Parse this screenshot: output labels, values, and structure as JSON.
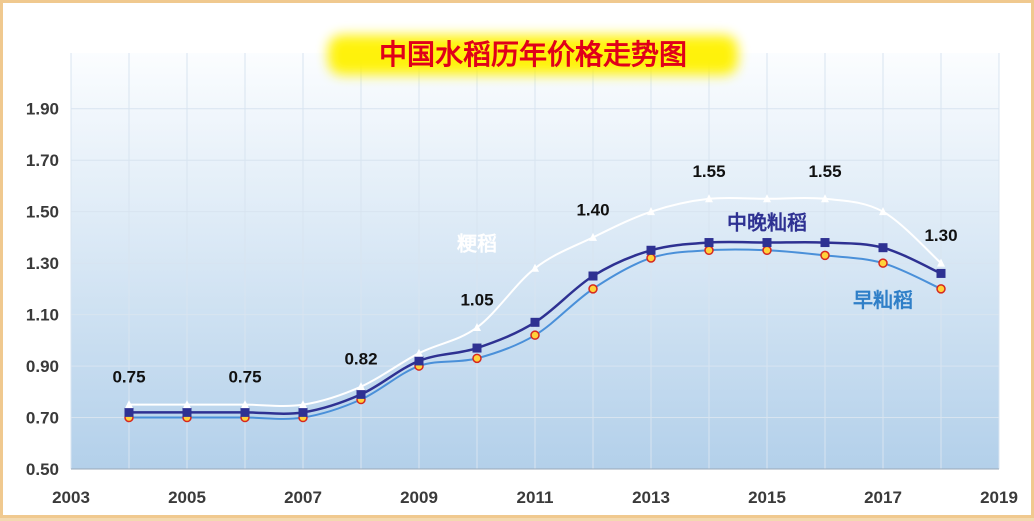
{
  "chart_data": {
    "type": "line",
    "title": "中国水稻历年价格走势图",
    "xlabel": "",
    "ylabel": "",
    "xlim": [
      2003,
      2019
    ],
    "ylim": [
      0.5,
      2.0
    ],
    "x_ticks": [
      "2003",
      "2005",
      "2007",
      "2009",
      "2011",
      "2013",
      "2015",
      "2017",
      "2019"
    ],
    "y_ticks": [
      "0.50",
      "0.70",
      "0.90",
      "1.10",
      "1.30",
      "1.50",
      "1.70",
      "1.90"
    ],
    "grid": true,
    "x": [
      2004,
      2005,
      2006,
      2007,
      2008,
      2009,
      2010,
      2011,
      2012,
      2013,
      2014,
      2015,
      2016,
      2017,
      2018
    ],
    "series": [
      {
        "name": "粳稻",
        "color": "#ffffff",
        "marker": "triangle",
        "values": [
          0.75,
          0.75,
          0.75,
          0.75,
          0.82,
          0.95,
          1.05,
          1.28,
          1.4,
          1.5,
          1.55,
          1.55,
          1.55,
          1.5,
          1.3
        ]
      },
      {
        "name": "中晚籼稻",
        "color": "#2e3192",
        "marker": "square",
        "values": [
          0.72,
          0.72,
          0.72,
          0.72,
          0.79,
          0.92,
          0.97,
          1.07,
          1.25,
          1.35,
          1.38,
          1.38,
          1.38,
          1.36,
          1.26
        ]
      },
      {
        "name": "早籼稻",
        "color": "#4a90d9",
        "marker": "circle",
        "values": [
          0.7,
          0.7,
          0.7,
          0.7,
          0.77,
          0.9,
          0.93,
          1.02,
          1.2,
          1.32,
          1.35,
          1.35,
          1.33,
          1.3,
          1.2
        ]
      }
    ],
    "data_labels": [
      {
        "x": 2004,
        "y": 0.75,
        "text": "0.75"
      },
      {
        "x": 2006,
        "y": 0.75,
        "text": "0.75"
      },
      {
        "x": 2008,
        "y": 0.82,
        "text": "0.82"
      },
      {
        "x": 2010,
        "y": 1.05,
        "text": "1.05"
      },
      {
        "x": 2012,
        "y": 1.4,
        "text": "1.40"
      },
      {
        "x": 2014,
        "y": 1.55,
        "text": "1.55"
      },
      {
        "x": 2016,
        "y": 1.55,
        "text": "1.55"
      },
      {
        "x": 2018,
        "y": 1.3,
        "text": "1.30"
      }
    ],
    "series_labels": [
      {
        "series": "粳稻",
        "x": 2010,
        "y": 1.35,
        "text": "粳稻"
      },
      {
        "series": "中晚籼稻",
        "x": 2015,
        "y": 1.43,
        "text": "中晚籼稻"
      },
      {
        "series": "早籼稻",
        "x": 2017,
        "y": 1.13,
        "text": "早籼稻"
      }
    ]
  }
}
